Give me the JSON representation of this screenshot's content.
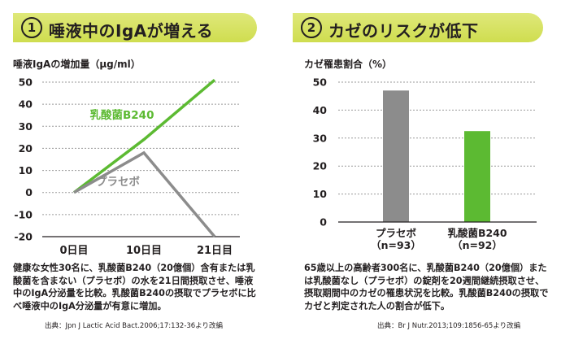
{
  "panel1": {
    "number": "1",
    "title": "唾液中のIgAが増える",
    "caption": "健康な女性30名に、乳酸菌B240（20億個）含有または乳酸菌を含まない（プラセボ）の水を21日間摂取させ、唾液中のIgA分泌量を比較。乳酸菌B240の摂取でプラセボに比べ唾液中のIgA分泌量が有意に増加。",
    "source": "出典：Jpn J Lactic Acid Bact.2006;17:132-36より改編"
  },
  "panel2": {
    "number": "2",
    "title": "カゼのリスクが低下",
    "caption": "65歳以上の高齢者300名に、乳酸菌B240（20億個）または乳酸菌なし（プラセボ）の錠剤を20週間継続摂取させ、摂取期間中のカゼの罹患状況を比較。乳酸菌B240の摂取でカゼと判定された人の割合が低下。",
    "source": "出典：Br J Nutr.2013;109:1856-65より改編"
  },
  "chart_data": [
    {
      "type": "line",
      "ylabel": "唾液IgAの増加量（μg/ml）",
      "x": [
        "0日目",
        "10日目",
        "21日目"
      ],
      "ylim": [
        -20,
        50
      ],
      "yticks": [
        "50",
        "40",
        "30",
        "20",
        "10",
        "0",
        "-10",
        "-20"
      ],
      "series": [
        {
          "name": "乳酸菌B240",
          "values": [
            0,
            24,
            51
          ],
          "color": "#5cba32"
        },
        {
          "name": "プラセボ",
          "values": [
            0,
            18,
            -20
          ],
          "color": "#8c8c8c"
        }
      ]
    },
    {
      "type": "bar",
      "ylabel": "カゼ罹患割合（%）",
      "categories": [
        "プラセボ\n（n=93）",
        "乳酸菌B240\n（n=92）"
      ],
      "values": [
        47,
        32.5
      ],
      "colors": [
        "#8c8c8c",
        "#5cba32"
      ],
      "ylim": [
        0,
        50
      ],
      "yticks": [
        "50",
        "40",
        "30",
        "20",
        "10",
        "0"
      ]
    }
  ]
}
